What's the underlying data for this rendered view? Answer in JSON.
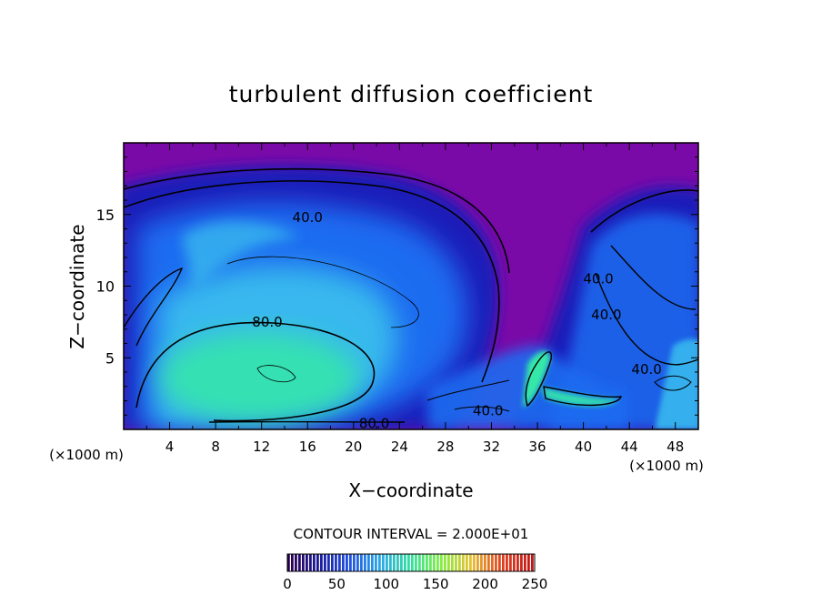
{
  "chart_data": {
    "type": "heatmap",
    "title": "turbulent diffusion coefficient",
    "xlabel": "X−coordinate",
    "ylabel": "Z−coordinate",
    "x_unit_left": "(×1000 m)",
    "x_unit_right": "(×1000 m)",
    "xlim": [
      0,
      50
    ],
    "ylim": [
      0,
      20
    ],
    "xticks": [
      4,
      8,
      12,
      16,
      20,
      24,
      28,
      32,
      36,
      40,
      44,
      48
    ],
    "yticks": [
      5,
      10,
      15
    ],
    "contour_interval_text": "CONTOUR INTERVAL = 2.000E+01",
    "contour_labels": [
      {
        "text": "40.0",
        "x": 16.0,
        "y": 14.8
      },
      {
        "text": "80.0",
        "x": 12.5,
        "y": 7.5
      },
      {
        "text": "80.0",
        "x": 21.8,
        "y": 0.4
      },
      {
        "text": "40.0",
        "x": 31.7,
        "y": 1.3
      },
      {
        "text": "40.0",
        "x": 41.3,
        "y": 10.5
      },
      {
        "text": "40.0",
        "x": 42.0,
        "y": 8.0
      },
      {
        "text": "40.0",
        "x": 45.5,
        "y": 4.2
      }
    ],
    "colorbar": {
      "ticks": [
        0,
        50,
        100,
        150,
        200,
        250
      ],
      "range": [
        0,
        250
      ],
      "colors": [
        "#2a0050",
        "#1a1a9a",
        "#2050e0",
        "#28a8e8",
        "#30e0a0",
        "#80f040",
        "#e8c030",
        "#e04020",
        "#c01818"
      ]
    },
    "field_colors": {
      "background": "#7a0aa8",
      "low": "#1a1ab8",
      "mid": "#1a6cf0",
      "high": "#38b8ee",
      "peak": "#34e8a8"
    }
  }
}
